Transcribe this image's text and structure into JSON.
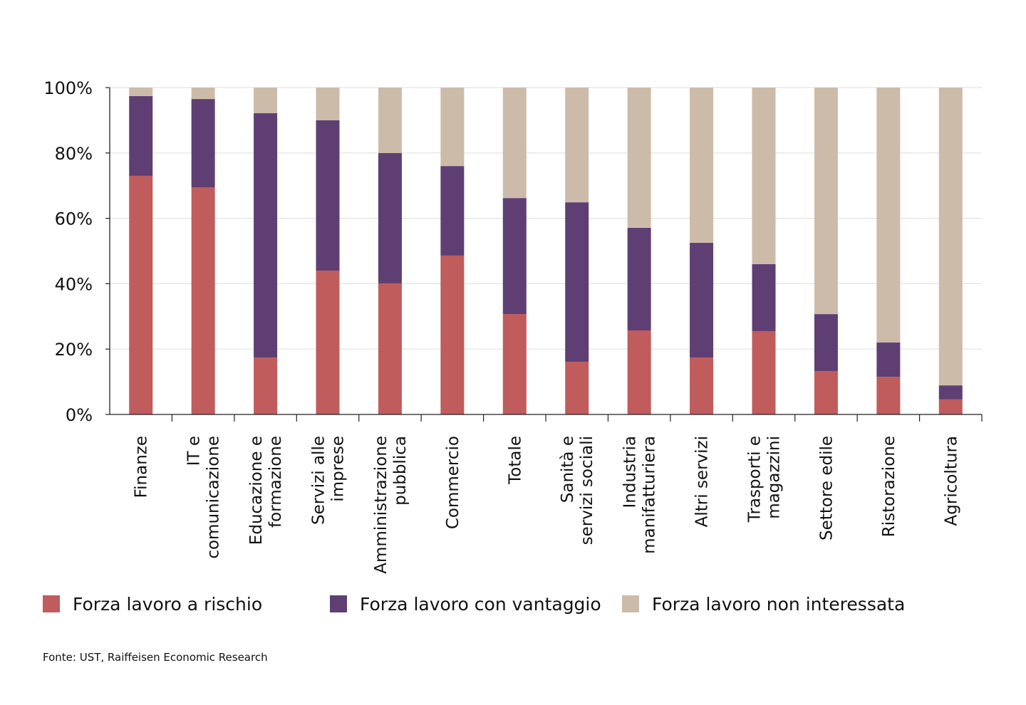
{
  "chart_data": {
    "type": "bar",
    "stacked": true,
    "title": "",
    "xlabel": "",
    "ylabel": "",
    "ylim": [
      0,
      100
    ],
    "yticks": [
      "0%",
      "20%",
      "40%",
      "60%",
      "80%",
      "100%"
    ],
    "ytick_values": [
      0,
      20,
      40,
      60,
      80,
      100
    ],
    "grid": true,
    "legend_position": "bottom",
    "categories": [
      [
        "Finanze"
      ],
      [
        "IT e",
        "comunicazione"
      ],
      [
        "Educazione e",
        "formazione"
      ],
      [
        "Servizi alle",
        "imprese"
      ],
      [
        "Amministrazione",
        "pubblica"
      ],
      [
        "Commercio"
      ],
      [
        "Totale"
      ],
      [
        "Sanità e",
        "servizi sociali"
      ],
      [
        "Industria",
        "manifatturiera"
      ],
      [
        "Altri servizi"
      ],
      [
        "Trasporti e",
        "magazzini"
      ],
      [
        "Settore edile"
      ],
      [
        "Ristorazione"
      ],
      [
        "Agricoltura"
      ]
    ],
    "series": [
      {
        "name": "Forza lavoro a rischio",
        "color": "#c05c5c",
        "values": [
          73.0,
          69.5,
          17.4,
          44.0,
          40.1,
          48.6,
          30.7,
          16.1,
          25.7,
          17.4,
          25.5,
          13.3,
          11.5,
          4.6
        ]
      },
      {
        "name": "Forza lavoro con vantaggio",
        "color": "#5f3f73",
        "values": [
          24.4,
          27.0,
          74.8,
          46.0,
          39.9,
          27.4,
          35.5,
          48.8,
          31.4,
          35.1,
          20.5,
          17.4,
          10.5,
          4.3
        ]
      },
      {
        "name": "Forza lavoro non interessata",
        "color": "#cdbbaa",
        "values": [
          2.6,
          3.5,
          7.8,
          10.0,
          20.0,
          24.0,
          33.8,
          35.1,
          42.9,
          47.5,
          54.0,
          69.3,
          78.0,
          91.1
        ]
      }
    ]
  },
  "source": "Fonte: UST, Raiffeisen Economic Research"
}
